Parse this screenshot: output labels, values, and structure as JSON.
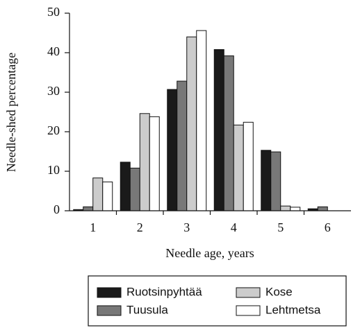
{
  "chart_data": {
    "type": "bar",
    "x_label": "Needle age, years",
    "y_label": "Needle-shed percentage",
    "categories": [
      "1",
      "2",
      "3",
      "4",
      "5",
      "6"
    ],
    "series": [
      {
        "name": "Ruotsinpyhtää",
        "color": "#1a1a1a",
        "values": [
          0.3,
          12.3,
          30.7,
          40.8,
          15.3,
          0.5
        ]
      },
      {
        "name": "Tuusula",
        "color": "#787878",
        "values": [
          1.0,
          10.8,
          32.8,
          39.2,
          14.9,
          1.0
        ]
      },
      {
        "name": "Kose",
        "color": "#cccccc",
        "values": [
          8.3,
          24.6,
          44.0,
          21.7,
          1.2,
          0
        ]
      },
      {
        "name": "Lehtmetsa",
        "color": "#ffffff",
        "values": [
          7.3,
          23.8,
          45.6,
          22.4,
          0.9,
          0
        ]
      }
    ],
    "ylim": [
      0,
      50
    ],
    "yticks": [
      0,
      10,
      20,
      30,
      40,
      50
    ]
  }
}
